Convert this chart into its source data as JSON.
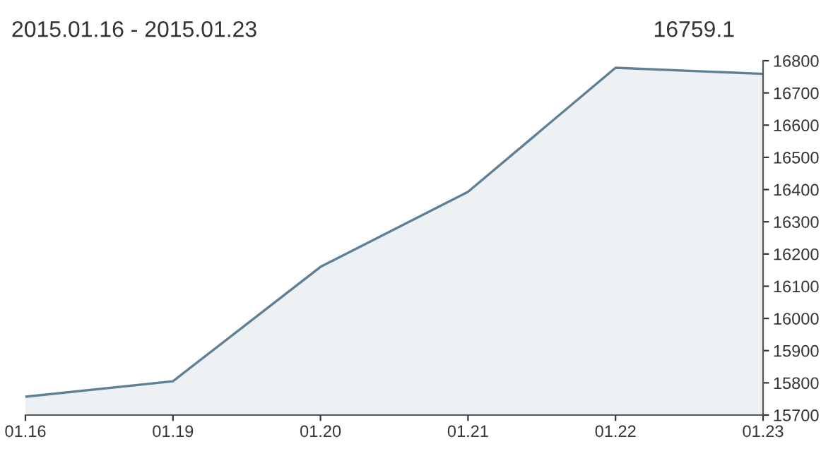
{
  "chart_data": {
    "type": "area",
    "title": "2015.01.16 - 2015.01.23",
    "annotations": [
      "16759.1"
    ],
    "categories": [
      "01.16",
      "01.19",
      "01.20",
      "01.21",
      "01.22",
      "01.23"
    ],
    "series": [
      {
        "color": "#5f7f94",
        "values": [
          15757,
          15805,
          16160,
          16393,
          16778,
          16759.1
        ]
      }
    ],
    "ylim": [
      15700,
      16800
    ],
    "yticks": [
      15700,
      15800,
      15900,
      16000,
      16100,
      16200,
      16300,
      16400,
      16500,
      16600,
      16700,
      16800
    ],
    "grid": false,
    "legend": false
  }
}
